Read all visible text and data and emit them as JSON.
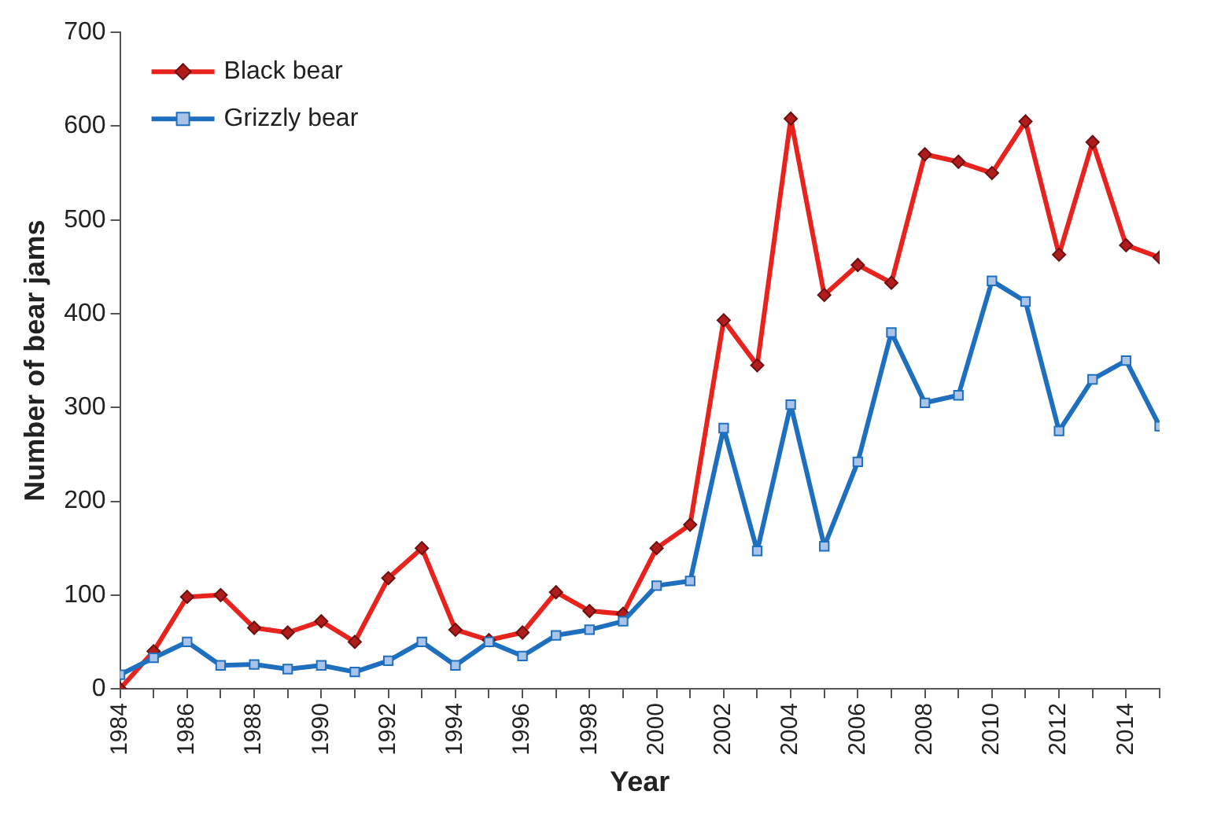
{
  "chart_data": {
    "type": "line",
    "xlabel": "Year",
    "ylabel": "Number of bear jams",
    "x": [
      1984,
      1985,
      1986,
      1987,
      1988,
      1989,
      1990,
      1991,
      1992,
      1993,
      1994,
      1995,
      1996,
      1997,
      1998,
      1999,
      2000,
      2001,
      2002,
      2003,
      2004,
      2005,
      2006,
      2007,
      2008,
      2009,
      2010,
      2011,
      2012,
      2013,
      2014,
      2015
    ],
    "series": [
      {
        "name": "Black bear",
        "color": "#e8231e",
        "marker": "diamond",
        "values": [
          0,
          40,
          98,
          100,
          65,
          60,
          72,
          50,
          118,
          150,
          63,
          52,
          60,
          103,
          83,
          80,
          150,
          175,
          393,
          345,
          608,
          420,
          452,
          433,
          570,
          562,
          550,
          605,
          463,
          583,
          473,
          460
        ]
      },
      {
        "name": "Grizzly bear",
        "color": "#1f6fbf",
        "marker": "square",
        "values": [
          15,
          33,
          50,
          25,
          26,
          21,
          25,
          18,
          30,
          50,
          25,
          50,
          35,
          57,
          63,
          72,
          110,
          115,
          278,
          147,
          303,
          152,
          242,
          380,
          305,
          313,
          435,
          413,
          275,
          330,
          350,
          280
        ]
      }
    ],
    "xlim": [
      1984,
      2015
    ],
    "xticks": [
      1984,
      {
        "value": 1985,
        "label": null
      },
      1986,
      {
        "value": 1987,
        "label": null
      },
      1988,
      {
        "value": 1989,
        "label": null
      },
      1990,
      {
        "value": 1991,
        "label": null
      },
      1992,
      {
        "value": 1993,
        "label": null
      },
      1994,
      {
        "value": 1995,
        "label": null
      },
      1996,
      {
        "value": 1997,
        "label": null
      },
      1998,
      {
        "value": 1999,
        "label": null
      },
      2000,
      {
        "value": 2001,
        "label": null
      },
      2002,
      {
        "value": 2003,
        "label": null
      },
      2004,
      {
        "value": 2005,
        "label": null
      },
      2006,
      {
        "value": 2007,
        "label": null
      },
      2008,
      {
        "value": 2009,
        "label": null
      },
      2010,
      {
        "value": 2011,
        "label": null
      },
      2012,
      {
        "value": 2013,
        "label": null
      },
      2014,
      {
        "value": 2015,
        "label": null
      }
    ],
    "ylim": [
      0,
      700
    ],
    "yticks": [
      0,
      100,
      200,
      300,
      400,
      500,
      600,
      700
    ],
    "grid": false,
    "legend": "top left",
    "line_style": "solid"
  }
}
